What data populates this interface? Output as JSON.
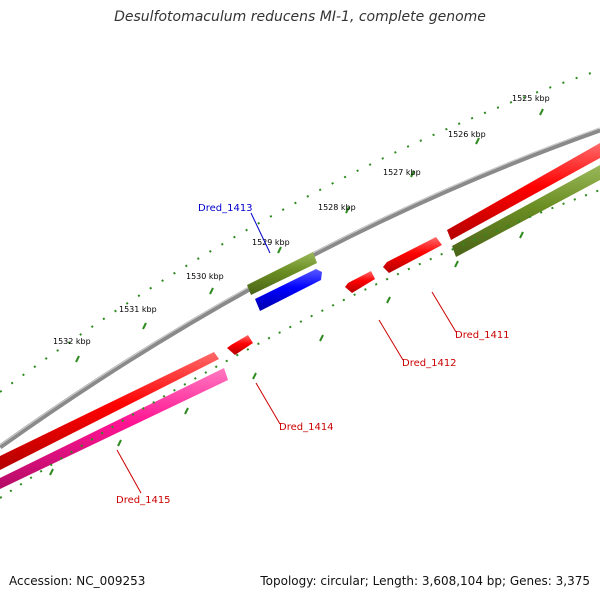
{
  "title": "Desulfotomaculum reducens MI-1, complete genome",
  "footer": {
    "accession": "Accession: NC_009253",
    "summary": "Topology: circular; Length: 3,608,104 bp; Genes: 3,375"
  },
  "colors": {
    "backbone": "#8a8a8a",
    "tick_green": "#2e8b20",
    "cds_red": "#ff0000",
    "cds_olive": "#6b8e23",
    "cds_blue": "#0000ff",
    "cds_pink": "#ff1493",
    "label_red": "#cc0000",
    "label_blue": "#0000cc"
  },
  "tick_labels": [
    "1525 kbp",
    "1526 kbp",
    "1527 kbp",
    "1528 kbp",
    "1529 kbp",
    "1530 kbp",
    "1531 kbp",
    "1532 kbp"
  ],
  "gene_labels": {
    "dred_1411": "Dred_1411",
    "dred_1412": "Dred_1412",
    "dred_1413": "Dred_1413",
    "dred_1414": "Dred_1414",
    "dred_1415": "Dred_1415"
  }
}
